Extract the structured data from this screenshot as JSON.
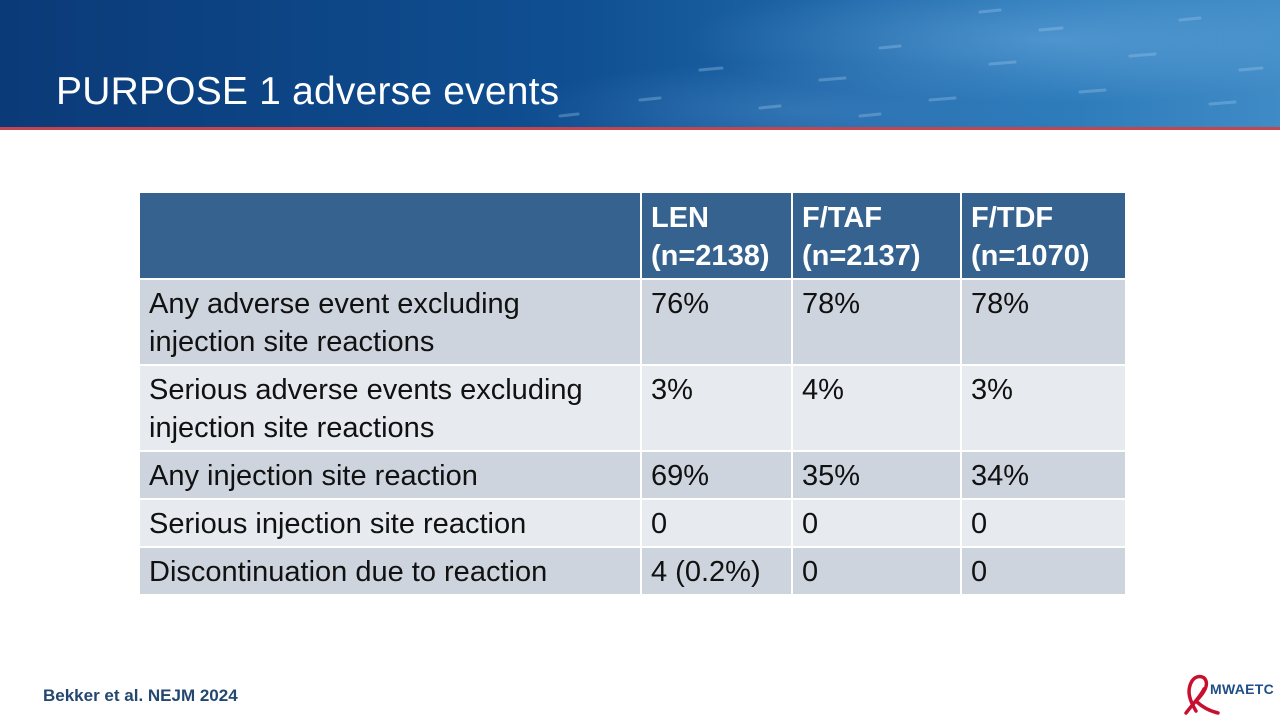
{
  "slide": {
    "title": "PURPOSE 1 adverse events",
    "citation": "Bekker et al. NEJM 2024",
    "logo_text": "MWAETC"
  },
  "table": {
    "headers": [
      {
        "line1": "",
        "line2": ""
      },
      {
        "line1": "LEN",
        "line2": "(n=2138)"
      },
      {
        "line1": "F/TAF",
        "line2": "(n=2137)"
      },
      {
        "line1": "F/TDF",
        "line2": "(n=1070)"
      }
    ],
    "rows": [
      {
        "label": "Any adverse event excluding injection site reactions",
        "values": [
          "76%",
          "78%",
          "78%"
        ]
      },
      {
        "label": "Serious adverse events excluding injection site reactions",
        "values": [
          "3%",
          "4%",
          "3%"
        ]
      },
      {
        "label": "Any injection site reaction",
        "values": [
          "69%",
          "35%",
          "34%"
        ]
      },
      {
        "label": "Serious injection site reaction",
        "values": [
          "0",
          "0",
          "0"
        ]
      },
      {
        "label": "Discontinuation due to reaction",
        "values": [
          "4 (0.2%)",
          "0",
          "0"
        ]
      }
    ]
  },
  "colors": {
    "banner": "#0f4f92",
    "banner_rule": "#c2464f",
    "header_fill": "#35628f",
    "row_dark": "#cdd4de",
    "row_light": "#e7eaef",
    "citation": "#24476f",
    "ribbon": "#c8102e"
  },
  "icons": {
    "logo": "red-ribbon-icon"
  }
}
